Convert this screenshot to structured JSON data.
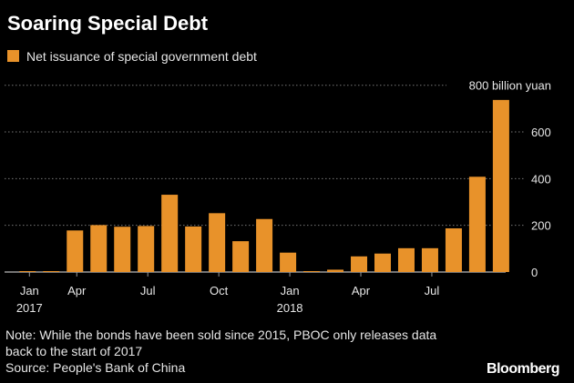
{
  "title": "Soaring Special Debt",
  "legend": {
    "label": "Net issuance of special government debt"
  },
  "note": [
    "Note: While the bonds have been sold since 2015, PBOC only releases data",
    "back to the start of 2017"
  ],
  "source": "Source: People's Bank of China",
  "logo": "Bloomberg",
  "colors": {
    "bar": "#E8922A",
    "background": "#000000",
    "grid": "#777777"
  },
  "chart_data": {
    "type": "bar",
    "title": "Soaring Special Debt",
    "series": [
      {
        "name": "Net issuance of special government debt",
        "values": [
          3,
          2,
          178,
          201,
          194,
          197,
          331,
          195,
          252,
          132,
          227,
          83,
          0,
          10,
          67,
          79,
          102,
          102,
          187,
          408,
          737
        ]
      }
    ],
    "x_ticks": [
      {
        "index": 0,
        "label": "Jan",
        "year": "2017"
      },
      {
        "index": 2,
        "label": "Apr"
      },
      {
        "index": 5,
        "label": "Jul"
      },
      {
        "index": 8,
        "label": "Oct"
      },
      {
        "index": 11,
        "label": "Jan",
        "year": "2018"
      },
      {
        "index": 14,
        "label": "Apr"
      },
      {
        "index": 17,
        "label": "Jul"
      }
    ],
    "y_ticks": [
      {
        "value": 0,
        "label": "0"
      },
      {
        "value": 200,
        "label": "200"
      },
      {
        "value": 400,
        "label": "400"
      },
      {
        "value": 600,
        "label": "600"
      },
      {
        "value": 800,
        "label": "800 billion yuan"
      }
    ],
    "ylim": [
      0,
      800
    ],
    "y_axis_side": "right",
    "grid": true,
    "legend_position": "top-left"
  }
}
